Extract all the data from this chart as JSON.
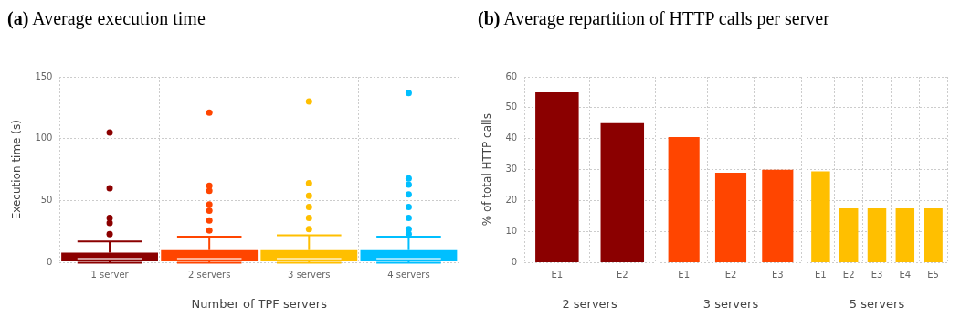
{
  "chart_data": [
    {
      "type": "box",
      "title": "(a) Average execution time",
      "xlabel": "Number of TPF servers",
      "ylabel": "Execution time (s)",
      "categories": [
        "1 server",
        "2 servers",
        "3 servers",
        "4 servers"
      ],
      "colors": [
        "#8b0000",
        "#ff4500",
        "#ffbf00",
        "#00bfff"
      ],
      "boxes": [
        {
          "low": 0,
          "q1": 1,
          "median": 3,
          "q3": 8,
          "high": 17,
          "outliers": [
            23,
            32,
            36,
            60,
            105
          ]
        },
        {
          "low": 0,
          "q1": 1,
          "median": 3,
          "q3": 10,
          "high": 21,
          "outliers": [
            26,
            34,
            42,
            47,
            58,
            62,
            121
          ]
        },
        {
          "low": 0,
          "q1": 1,
          "median": 3,
          "q3": 10,
          "high": 22,
          "outliers": [
            27,
            36,
            45,
            54,
            64,
            130
          ]
        },
        {
          "low": 0,
          "q1": 1,
          "median": 3,
          "q3": 10,
          "high": 21,
          "outliers": [
            23,
            27,
            36,
            45,
            55,
            63,
            68,
            137
          ]
        }
      ],
      "ylim": [
        0,
        150
      ],
      "yticks": [
        0,
        50,
        100,
        150
      ],
      "grid": true,
      "legend": false
    },
    {
      "type": "bar",
      "title": "(b) Average repartition of HTTP calls per server",
      "xlabel": "2 servers",
      "ylabel": "% of total HTTP calls",
      "categories": [
        "E1",
        "E2"
      ],
      "values": [
        55,
        45
      ],
      "color": "#8b0000",
      "ylim": [
        0,
        60
      ],
      "yticks": [
        0,
        10,
        20,
        30,
        40,
        50,
        60
      ],
      "grid": true,
      "legend": false
    },
    {
      "type": "bar",
      "xlabel": "3 servers",
      "categories": [
        "E1",
        "E2",
        "E3"
      ],
      "values": [
        40.5,
        29,
        30
      ],
      "color": "#ff4500",
      "ylim": [
        0,
        60
      ],
      "yticks": [
        0,
        10,
        20,
        30,
        40,
        50,
        60
      ],
      "grid": true,
      "legend": false,
      "tick_labels": "x"
    },
    {
      "type": "bar",
      "xlabel": "5 servers",
      "categories": [
        "E1",
        "E2",
        "E3",
        "E4",
        "E5"
      ],
      "values": [
        29.5,
        17.5,
        17.5,
        17.5,
        17.5
      ],
      "color": "#ffbf00",
      "ylim": [
        0,
        60
      ],
      "yticks": [
        0,
        10,
        20,
        30,
        40,
        50,
        60
      ],
      "grid": true,
      "legend": false,
      "tick_labels": "x"
    }
  ]
}
